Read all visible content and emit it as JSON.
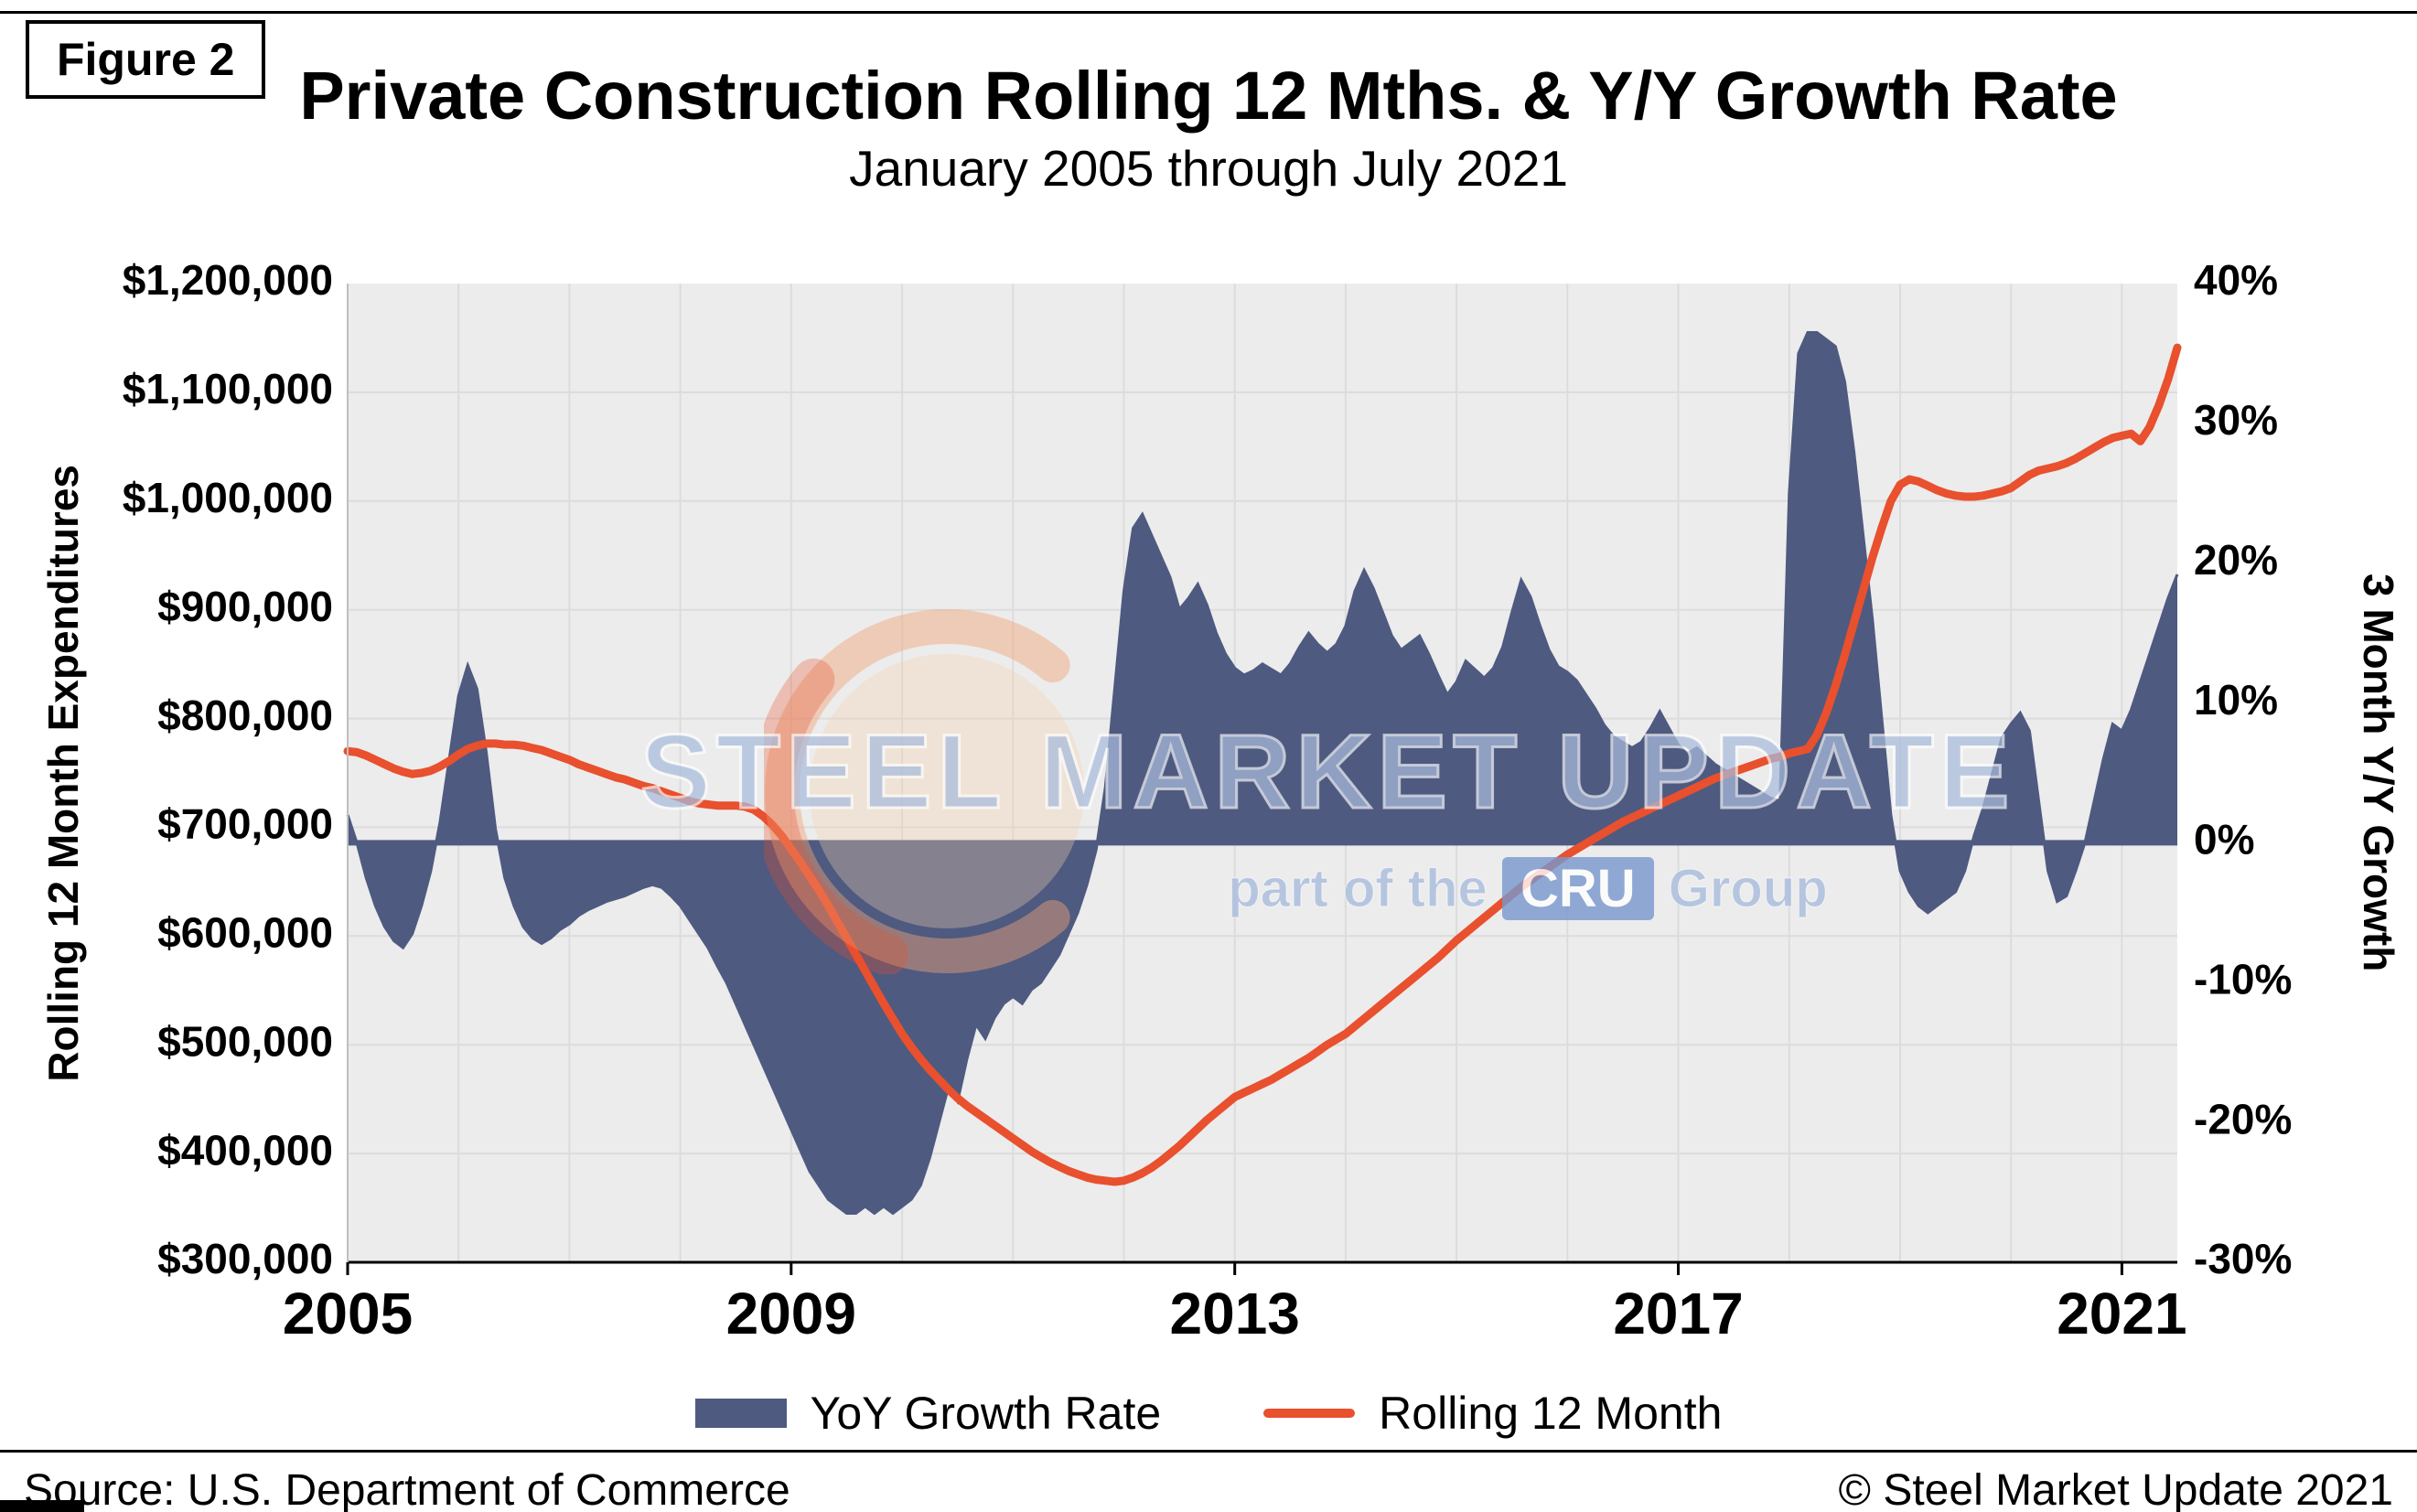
{
  "figure_label": "Figure 2",
  "title": "Private Construction Rolling 12 Mths. & Y/Y Growth Rate",
  "subtitle": "January 2005 through July 2021",
  "left_axis": {
    "title": "Rolling 12 Month Expenditures",
    "ticks": [
      "$1,200,000",
      "$1,100,000",
      "$1,000,000",
      "$900,000",
      "$800,000",
      "$700,000",
      "$600,000",
      "$500,000",
      "$400,000",
      "$300,000"
    ]
  },
  "right_axis": {
    "title": "3 Month Y/Y Growth",
    "ticks": [
      "40%",
      "30%",
      "20%",
      "10%",
      "0%",
      "-10%",
      "-20%",
      "-30%"
    ]
  },
  "x_axis": {
    "years": [
      2005,
      2009,
      2013,
      2017,
      2021
    ],
    "labels": [
      "2005",
      "2009",
      "2013",
      "2017",
      "2021"
    ]
  },
  "legend": [
    {
      "label": "YoY Growth Rate",
      "color": "#4e5a80",
      "type": "area"
    },
    {
      "label": "Rolling 12 Month",
      "color": "#e8502e",
      "type": "line"
    }
  ],
  "footer": {
    "source": "Source: U.S. Department of Commerce",
    "copyright": "© Steel Market Update 2021"
  },
  "watermark": {
    "line1": "STEEL MARKET UPDATE",
    "line2_prefix": "part of the",
    "line2_box": "CRU",
    "line2_suffix": "Group"
  },
  "colors": {
    "plot_bg": "#ececec",
    "grid": "#dcdcdc",
    "yoy_area": "#4e5a80",
    "rolling_line": "#e8502e",
    "watermark_text": "#a9bcdc",
    "watermark_cru_bg": "#7898cd",
    "logo_ring": "#f2a477",
    "logo_fill": "#f7d0ae",
    "logo_swoosh": "#e8502e"
  },
  "chart_data": {
    "type": "combo",
    "title": "Private Construction Rolling 12 Mths. & Y/Y Growth Rate",
    "x_start": "2005-01",
    "x_end": "2021-07",
    "frequency": "monthly",
    "left_ylim": [
      300000,
      1200000
    ],
    "right_ylim": [
      -30,
      40
    ],
    "grid": true,
    "legend_position": "bottom",
    "series": [
      {
        "name": "YoY Growth Rate",
        "type": "area",
        "axis": "right",
        "unit": "%",
        "color": "#4e5a80",
        "values": [
          2,
          0,
          -2.5,
          -4.5,
          -6,
          -7,
          -7.5,
          -6.5,
          -4.5,
          -2,
          1.5,
          6,
          10.5,
          12.7,
          11,
          6.5,
          1,
          -2.5,
          -4.5,
          -6,
          -6.8,
          -7.2,
          -6.8,
          -6.2,
          -5.8,
          -5.2,
          -4.8,
          -4.5,
          -4.2,
          -4,
          -3.8,
          -3.5,
          -3.2,
          -3,
          -3.2,
          -3.8,
          -4.5,
          -5.5,
          -6.5,
          -7.5,
          -8.8,
          -10,
          -11.5,
          -13,
          -14.5,
          -16,
          -17.5,
          -19,
          -20.5,
          -22,
          -23.5,
          -24.5,
          -25.5,
          -26,
          -26.5,
          -26.5,
          -26,
          -26.5,
          -26,
          -26.5,
          -26,
          -25.5,
          -24.5,
          -22.5,
          -20,
          -17.5,
          -18.5,
          -15.5,
          -13,
          -14,
          -12.5,
          -11.5,
          -11,
          -11.5,
          -10.5,
          -10,
          -9,
          -8,
          -6.5,
          -5,
          -3,
          -0.5,
          4,
          11,
          18,
          22.5,
          23.5,
          22,
          20.5,
          19,
          16.7,
          17.5,
          18.5,
          17,
          15,
          13.5,
          12.5,
          12,
          12.3,
          12.8,
          12.4,
          12,
          12.8,
          14,
          15,
          14.2,
          13.6,
          14.2,
          15.5,
          18,
          19.5,
          18.2,
          16.5,
          14.8,
          13.8,
          14.3,
          14.8,
          13.5,
          12,
          10.6,
          11.5,
          13,
          12.4,
          11.8,
          12.5,
          14,
          16.5,
          18.8,
          17.6,
          15.6,
          13.8,
          12.6,
          12.2,
          11.6,
          10.6,
          9.6,
          8.4,
          7.6,
          7.2,
          6.8,
          7.2,
          8.2,
          9.4,
          8.2,
          7,
          6.4,
          6.8,
          6.2,
          5.6,
          5.2,
          4.8,
          4.4,
          4,
          3.6,
          3.2,
          3,
          25,
          35,
          36.5,
          36.5,
          36,
          35.5,
          33,
          28,
          22,
          16,
          9,
          2,
          -2,
          -3.5,
          -4.5,
          -5,
          -4.5,
          -4,
          -3.5,
          -2,
          0.5,
          2.5,
          5,
          7.5,
          8.5,
          9.3,
          8,
          3,
          -2,
          -4.2,
          -3.8,
          -2,
          0,
          3,
          6,
          8.5,
          8,
          9.5,
          11.5,
          13.5,
          15.5,
          17.5,
          19.2
        ]
      },
      {
        "name": "Rolling 12 Month",
        "type": "line",
        "axis": "left",
        "unit": "USD thousands",
        "color": "#e8502e",
        "values": [
          770000,
          769000,
          766000,
          762000,
          758000,
          754000,
          751000,
          749000,
          750000,
          752000,
          756000,
          761000,
          767000,
          772000,
          775000,
          777000,
          777000,
          776000,
          776000,
          775000,
          773000,
          771000,
          768000,
          765000,
          762000,
          758000,
          755000,
          752000,
          749000,
          746000,
          744000,
          741000,
          738000,
          736000,
          733000,
          730000,
          727000,
          724000,
          722000,
          721000,
          720000,
          720000,
          720000,
          719000,
          716000,
          710000,
          702000,
          692000,
          680000,
          668000,
          655000,
          642000,
          628000,
          613000,
          598000,
          583000,
          568000,
          553000,
          538000,
          524000,
          510000,
          498000,
          487000,
          477000,
          468000,
          459000,
          451000,
          444000,
          438000,
          432000,
          426000,
          420000,
          414000,
          408000,
          402000,
          397000,
          392000,
          388000,
          384000,
          381000,
          378000,
          376000,
          375000,
          374000,
          375000,
          378000,
          382000,
          387000,
          393000,
          400000,
          407000,
          415000,
          423000,
          431000,
          438000,
          445000,
          452000,
          456000,
          460000,
          464000,
          468000,
          473000,
          478000,
          483000,
          488000,
          494000,
          500000,
          505000,
          510000,
          517000,
          524000,
          531000,
          538000,
          545000,
          552000,
          559000,
          566000,
          573000,
          580000,
          588000,
          596000,
          603000,
          610000,
          617000,
          624000,
          631000,
          638000,
          645000,
          651000,
          657000,
          663000,
          669000,
          675000,
          680000,
          685000,
          690000,
          695000,
          700000,
          705000,
          709000,
          713000,
          717000,
          721000,
          725000,
          729000,
          733000,
          737000,
          741000,
          745000,
          748000,
          751000,
          754000,
          757000,
          760000,
          763000,
          765000,
          768000,
          770000,
          772000,
          785000,
          805000,
          830000,
          858000,
          888000,
          918000,
          948000,
          975000,
          1000000,
          1015000,
          1020000,
          1018000,
          1014000,
          1010000,
          1007000,
          1005000,
          1004000,
          1004000,
          1005000,
          1007000,
          1009000,
          1012000,
          1018000,
          1024000,
          1028000,
          1030000,
          1032000,
          1035000,
          1039000,
          1044000,
          1049000,
          1054000,
          1058000,
          1060000,
          1062000,
          1055000,
          1068000,
          1088000,
          1112000,
          1141000
        ]
      }
    ]
  }
}
